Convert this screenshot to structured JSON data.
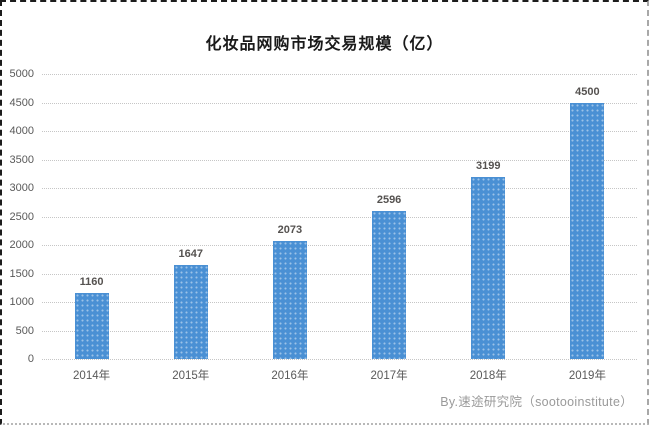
{
  "chart_data": {
    "type": "bar",
    "title": "化妆品网购市场交易规模（亿）",
    "categories": [
      "2014年",
      "2015年",
      "2016年",
      "2017年",
      "2018年",
      "2019年"
    ],
    "values": [
      1160,
      1647,
      2073,
      2596,
      3199,
      4500
    ],
    "xlabel": "",
    "ylabel": "",
    "ylim": [
      0,
      5000
    ],
    "ytick_step": 500,
    "grid": "horizontal-dotted",
    "legend": "none",
    "bar_color": "#4a90d4",
    "gridline_color": "#c6c6c6",
    "axis_label_color": "#595959",
    "value_label_color": "#555250"
  },
  "footer": {
    "credit": "By.速途研究院（sootooinstitute）"
  }
}
